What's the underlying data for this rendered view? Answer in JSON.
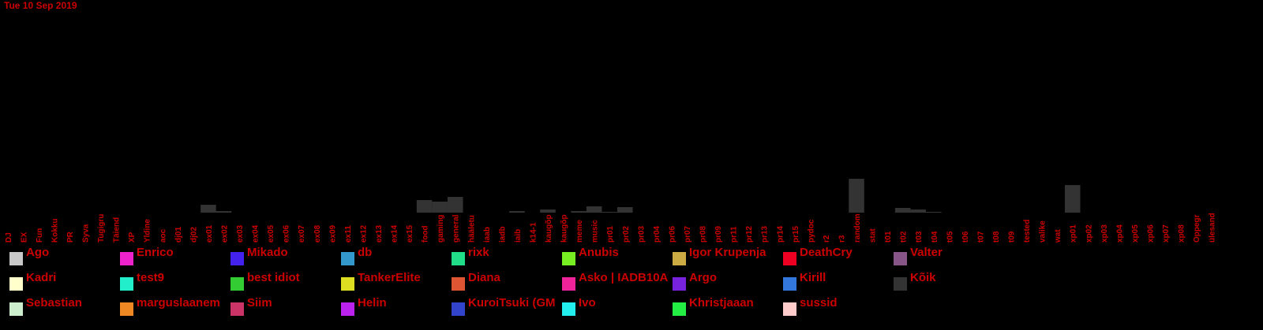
{
  "header": {
    "date": "Tue 10 Sep 2019"
  },
  "colors": {
    "background": "#000000",
    "label_red": "#cc0000",
    "bar_gray": "#333333"
  },
  "chart_data": {
    "type": "bar",
    "title": "",
    "xlabel": "",
    "ylabel": "",
    "ylim": [
      0,
      100
    ],
    "grid": false,
    "legend_position": "bottom",
    "categories": [
      "DJ",
      "EX",
      "Fun",
      "Kokku",
      "PR",
      "Syva",
      "Tugigru",
      "Täiend",
      "XP",
      "Yldine",
      "aoc",
      "dj01",
      "dj02",
      "ex01",
      "ex02",
      "ex03",
      "ex04",
      "ex05",
      "ex06",
      "ex07",
      "ex08",
      "ex09",
      "ex11",
      "ex12",
      "ex13",
      "ex14",
      "ex15",
      "food",
      "gaming",
      "general",
      "hääletu",
      "iaab",
      "iadb",
      "iaib",
      "k14-1",
      "kaugõp",
      "kaugõp",
      "meme",
      "music",
      "pr01",
      "pr02",
      "pr03",
      "pr04",
      "pr06",
      "pr07",
      "pr08",
      "pr09",
      "pr11",
      "pr12",
      "pr13",
      "pr14",
      "pr15",
      "pydoc",
      "r2",
      "r3",
      "random",
      "stat",
      "t01",
      "t02",
      "t03",
      "t04",
      "t05",
      "t06",
      "t07",
      "t08",
      "t09",
      "tested",
      "valike",
      "wat",
      "xp01",
      "xp02",
      "xp03",
      "xp04",
      "xp05",
      "xp06",
      "xp07",
      "xp08",
      "Oppegr",
      "ülesand"
    ],
    "series": [
      {
        "name": "Kõik",
        "color": "#333333",
        "values": [
          0,
          0,
          0,
          0,
          0,
          0,
          0,
          0,
          0,
          0,
          0,
          0,
          0,
          10,
          2,
          0,
          0,
          0,
          0,
          0,
          0,
          0,
          0,
          0,
          0,
          0,
          0,
          16,
          14,
          20,
          0,
          0,
          0,
          2,
          0,
          4,
          0,
          2,
          8,
          1,
          7,
          0,
          0,
          0,
          0,
          0,
          0,
          0,
          0,
          0,
          0,
          0,
          0,
          0,
          0,
          43,
          0,
          0,
          6,
          4,
          1,
          0,
          0,
          0,
          0,
          0,
          0,
          0,
          0,
          35,
          0,
          0,
          0,
          0,
          0,
          0,
          0,
          0,
          0
        ]
      }
    ],
    "legend": [
      {
        "name": "Ago",
        "color": "#c8c8c8"
      },
      {
        "name": "Enrico",
        "color": "#ee22cc"
      },
      {
        "name": "Mikado",
        "color": "#4422ee"
      },
      {
        "name": "db",
        "color": "#3399cc"
      },
      {
        "name": "rixk",
        "color": "#22dd88"
      },
      {
        "name": "Anubis",
        "color": "#77ee22"
      },
      {
        "name": "Igor Krupenja",
        "color": "#ccaa44"
      },
      {
        "name": "DeathCry",
        "color": "#ee0022"
      },
      {
        "name": "Valter",
        "color": "#885588"
      },
      {
        "name": "Kadri",
        "color": "#ffffcc"
      },
      {
        "name": "test9",
        "color": "#22eecc"
      },
      {
        "name": "best idiot",
        "color": "#33cc33"
      },
      {
        "name": "TankerElite",
        "color": "#dddd22"
      },
      {
        "name": "Diana",
        "color": "#dd5533"
      },
      {
        "name": "Asko | IADB10A",
        "color": "#ee2299"
      },
      {
        "name": "Argo",
        "color": "#7722dd"
      },
      {
        "name": "Kirill",
        "color": "#3377dd"
      },
      {
        "name": "Kõik",
        "color": "#333333"
      },
      {
        "name": "Sebastian",
        "color": "#cceecc"
      },
      {
        "name": "marguslaanem",
        "color": "#ee8822"
      },
      {
        "name": "Siim",
        "color": "#cc3366"
      },
      {
        "name": "Helin",
        "color": "#bb22ee"
      },
      {
        "name": "KuroiTsuki (GM",
        "color": "#3344cc"
      },
      {
        "name": "Ivo",
        "color": "#22eeee"
      },
      {
        "name": "Khristjaaan",
        "color": "#22ee44"
      },
      {
        "name": "sussid",
        "color": "#ffcccc"
      }
    ]
  }
}
